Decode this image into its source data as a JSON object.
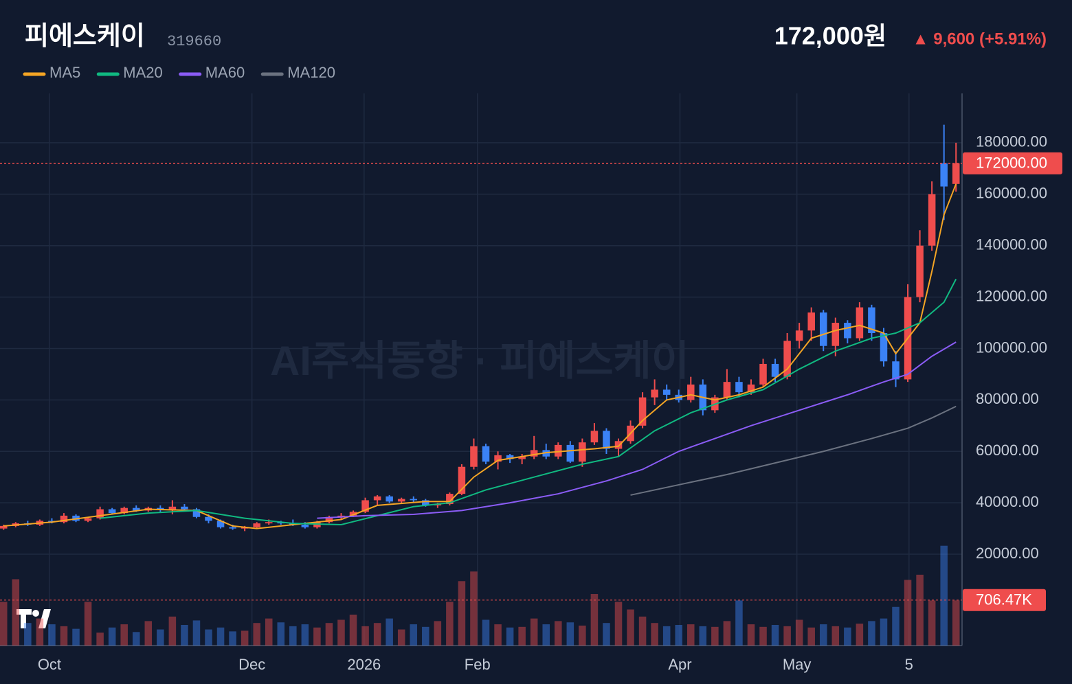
{
  "header": {
    "name": "피에스케이",
    "code": "319660",
    "price": "172,000원",
    "change": "▲ 9,600 (+5.91%)"
  },
  "watermark": "AI주식동향 · 피에스케이",
  "chart_data": {
    "type": "candlestick",
    "grid": true,
    "up_color": "#ef4d4d",
    "down_color": "#3b82f6",
    "xlim": [
      -0.3,
      79.5
    ],
    "xticks": [
      {
        "value": 3.8,
        "label": "Oct"
      },
      {
        "value": 20.6,
        "label": "Dec"
      },
      {
        "value": 29.9,
        "label": "2026"
      },
      {
        "value": 39.3,
        "label": "Feb"
      },
      {
        "value": 56.1,
        "label": "Apr"
      },
      {
        "value": 65.8,
        "label": "May"
      },
      {
        "value": 75.1,
        "label": "5"
      }
    ],
    "ylim": [
      -15500,
      199200
    ],
    "yticks": [
      {
        "value": 20000,
        "label": "20000.00"
      },
      {
        "value": 40000,
        "label": "40000.00"
      },
      {
        "value": 60000,
        "label": "60000.00"
      },
      {
        "value": 80000,
        "label": "80000.00"
      },
      {
        "value": 100000,
        "label": "100000.00"
      },
      {
        "value": 120000,
        "label": "120000.00"
      },
      {
        "value": 140000,
        "label": "140000.00"
      },
      {
        "value": 160000,
        "label": "160000.00"
      },
      {
        "value": 180000,
        "label": "180000.00"
      }
    ],
    "last_price": {
      "value": 172000,
      "label": "172000.00"
    },
    "candles": [
      [
        30000,
        31500,
        29500,
        31000
      ],
      [
        31000,
        32500,
        30500,
        32000
      ],
      [
        32000,
        33000,
        31000,
        31500
      ],
      [
        31500,
        33500,
        31000,
        33000
      ],
      [
        33000,
        34000,
        32000,
        32500
      ],
      [
        32500,
        36000,
        32000,
        35000
      ],
      [
        35000,
        35500,
        32500,
        33000
      ],
      [
        33000,
        34500,
        32500,
        34000
      ],
      [
        34000,
        38500,
        33500,
        37500
      ],
      [
        37500,
        38000,
        35500,
        36000
      ],
      [
        36000,
        38500,
        35500,
        38000
      ],
      [
        38000,
        39000,
        36500,
        37000
      ],
      [
        37000,
        38500,
        36500,
        38000
      ],
      [
        38000,
        39000,
        36500,
        37500
      ],
      [
        37500,
        41000,
        35500,
        38500
      ],
      [
        38500,
        39500,
        37000,
        37500
      ],
      [
        37500,
        38000,
        34000,
        34500
      ],
      [
        34500,
        35500,
        32000,
        33000
      ],
      [
        33000,
        33500,
        30000,
        30500
      ],
      [
        30500,
        31500,
        29500,
        30000
      ],
      [
        30000,
        31000,
        29000,
        30500
      ],
      [
        30500,
        32500,
        30000,
        32000
      ],
      [
        32000,
        33500,
        31500,
        32500
      ],
      [
        32500,
        33000,
        31500,
        32000
      ],
      [
        32000,
        33500,
        31000,
        31500
      ],
      [
        31500,
        32500,
        30000,
        30500
      ],
      [
        30500,
        33000,
        30000,
        32500
      ],
      [
        32500,
        35000,
        32000,
        34500
      ],
      [
        34500,
        36000,
        33500,
        35000
      ],
      [
        35000,
        37000,
        34500,
        36500
      ],
      [
        36500,
        42000,
        36000,
        41000
      ],
      [
        41000,
        43000,
        39000,
        42500
      ],
      [
        42500,
        43000,
        40000,
        40500
      ],
      [
        40500,
        42000,
        39500,
        41500
      ],
      [
        41500,
        42500,
        40000,
        41000
      ],
      [
        41000,
        41500,
        38500,
        39000
      ],
      [
        39000,
        40000,
        38000,
        39500
      ],
      [
        39500,
        44000,
        39000,
        43500
      ],
      [
        43500,
        55000,
        43000,
        54000
      ],
      [
        54000,
        65000,
        53000,
        62000
      ],
      [
        62000,
        63000,
        55000,
        56000
      ],
      [
        56000,
        60000,
        53000,
        58500
      ],
      [
        58500,
        59000,
        55500,
        57000
      ],
      [
        57000,
        59000,
        55000,
        58000
      ],
      [
        58000,
        66000,
        57000,
        60500
      ],
      [
        60500,
        63000,
        57000,
        58000
      ],
      [
        58000,
        63500,
        57000,
        62500
      ],
      [
        62500,
        64000,
        55500,
        56000
      ],
      [
        56000,
        65000,
        54000,
        63500
      ],
      [
        63500,
        71000,
        62500,
        68000
      ],
      [
        68000,
        69000,
        59000,
        61000
      ],
      [
        61000,
        65000,
        58000,
        64000
      ],
      [
        64000,
        72000,
        63000,
        70000
      ],
      [
        70000,
        83000,
        69000,
        81000
      ],
      [
        81000,
        88000,
        78000,
        84000
      ],
      [
        84000,
        86000,
        80000,
        82000
      ],
      [
        82000,
        84000,
        79000,
        80000
      ],
      [
        80000,
        89000,
        79000,
        86000
      ],
      [
        86000,
        88000,
        74000,
        76000
      ],
      [
        76000,
        82000,
        75000,
        81000
      ],
      [
        81000,
        92000,
        80000,
        87000
      ],
      [
        87000,
        89000,
        81000,
        83000
      ],
      [
        83000,
        88000,
        82000,
        86000
      ],
      [
        86000,
        96000,
        85000,
        94000
      ],
      [
        94000,
        96000,
        87000,
        89000
      ],
      [
        89000,
        106000,
        88000,
        103000
      ],
      [
        103000,
        110000,
        100000,
        107000
      ],
      [
        107000,
        116000,
        103000,
        114000
      ],
      [
        114000,
        115000,
        99000,
        101000
      ],
      [
        101000,
        112000,
        97000,
        110000
      ],
      [
        110000,
        111000,
        102000,
        104000
      ],
      [
        104000,
        118000,
        103000,
        116000
      ],
      [
        116000,
        117000,
        103000,
        106000
      ],
      [
        106000,
        108000,
        93000,
        95000
      ],
      [
        95000,
        99000,
        85000,
        88000
      ],
      [
        88000,
        125000,
        87000,
        120000
      ],
      [
        120000,
        146000,
        118000,
        140000
      ],
      [
        140000,
        165000,
        138000,
        160000
      ],
      [
        172000,
        187000,
        150000,
        163000
      ],
      [
        164000,
        180000,
        161000,
        172000
      ]
    ],
    "volume": {
      "ylim": [
        0,
        1600000
      ],
      "ref": {
        "value": 706470,
        "label": "706.47K"
      },
      "values": [
        680000,
        1030000,
        350000,
        420000,
        330000,
        300000,
        260000,
        680000,
        200000,
        280000,
        330000,
        210000,
        380000,
        250000,
        450000,
        320000,
        390000,
        250000,
        280000,
        220000,
        230000,
        350000,
        420000,
        360000,
        300000,
        330000,
        280000,
        350000,
        400000,
        480000,
        300000,
        350000,
        420000,
        250000,
        330000,
        290000,
        380000,
        680000,
        1000000,
        1150000,
        400000,
        330000,
        280000,
        290000,
        420000,
        330000,
        380000,
        360000,
        310000,
        800000,
        350000,
        680000,
        560000,
        450000,
        350000,
        300000,
        320000,
        330000,
        300000,
        290000,
        380000,
        700000,
        330000,
        290000,
        320000,
        300000,
        400000,
        280000,
        330000,
        300000,
        280000,
        340000,
        380000,
        420000,
        600000,
        1020000,
        1100000,
        700000,
        1550000,
        700000
      ]
    },
    "series": [
      {
        "name": "MA5",
        "color": "#f5a524",
        "x": [
          0,
          4,
          8,
          12,
          16,
          19,
          21,
          25,
          28,
          31,
          35,
          37,
          39,
          41,
          45,
          49,
          51,
          53,
          55,
          57,
          59,
          61,
          63,
          65,
          67,
          69,
          71,
          73,
          74,
          76,
          77,
          78,
          79
        ],
        "values": [
          31000,
          32500,
          35000,
          37500,
          37000,
          31000,
          30000,
          32000,
          33500,
          39000,
          40500,
          40500,
          50000,
          56500,
          59500,
          61000,
          62000,
          72000,
          80000,
          82000,
          80000,
          82000,
          85000,
          92000,
          104000,
          107000,
          109000,
          106000,
          98000,
          110000,
          130000,
          152000,
          164000
        ]
      },
      {
        "name": "MA20",
        "color": "#10b981",
        "x": [
          8,
          12,
          16,
          20,
          24,
          28,
          31,
          34,
          37,
          40,
          44,
          48,
          51,
          54,
          57,
          60,
          63,
          66,
          69,
          72,
          74,
          76,
          78,
          79
        ],
        "values": [
          34000,
          36000,
          37000,
          34000,
          32000,
          31500,
          35000,
          38500,
          40000,
          45000,
          50000,
          55000,
          58000,
          68000,
          75000,
          80000,
          84000,
          92000,
          99000,
          104000,
          106000,
          110000,
          118000,
          127000
        ]
      },
      {
        "name": "MA60",
        "color": "#8b5cf6",
        "x": [
          26,
          30,
          34,
          38,
          42,
          46,
          50,
          53,
          56,
          59,
          62,
          66,
          70,
          73,
          75,
          77,
          79
        ],
        "values": [
          34000,
          35000,
          35500,
          37000,
          40000,
          43500,
          48500,
          53000,
          60000,
          65000,
          70000,
          76000,
          82000,
          87000,
          90000,
          97000,
          102500
        ]
      },
      {
        "name": "MA120",
        "color": "#6b7280",
        "x": [
          52,
          56,
          60,
          64,
          68,
          72,
          75,
          77,
          79
        ],
        "values": [
          43000,
          47000,
          51000,
          55500,
          60000,
          65000,
          69000,
          73000,
          77500
        ]
      }
    ]
  }
}
